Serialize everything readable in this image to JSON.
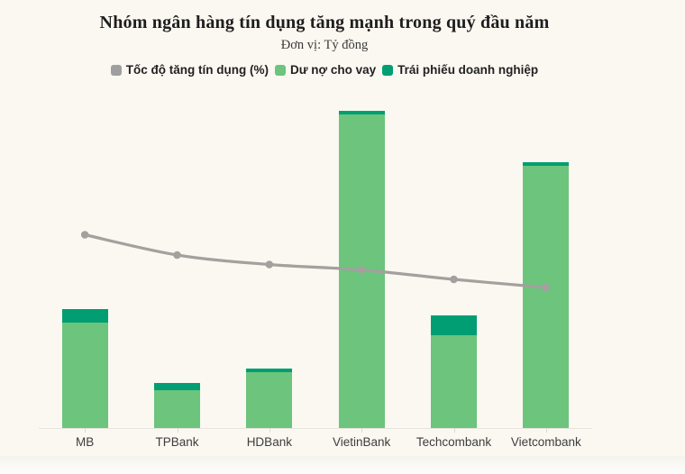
{
  "header": {
    "title": "Nhóm ngân hàng tín dụng tăng mạnh trong quý đầu năm",
    "subtitle": "Đơn vị: Tỷ đồng"
  },
  "colors": {
    "background": "#faf8f1",
    "loans_green": "#6cc47d",
    "bonds_green": "#009e72",
    "line_gray": "#a3a09e",
    "swatch_gray": "#9f9f9f",
    "axis": "#e7e5de",
    "title_text": "#1e1e1e",
    "label_text": "#3d3d3d"
  },
  "legend": {
    "items": [
      {
        "name": "growth-rate",
        "label": "Tốc độ tăng tín dụng (%)",
        "color": "#9f9f9f"
      },
      {
        "name": "loans",
        "label": "Dư nợ cho vay",
        "color": "#6cc47d"
      },
      {
        "name": "corporate-bonds",
        "label": "Trái phiếu doanh nghiệp",
        "color": "#009e72"
      }
    ]
  },
  "chart_data": {
    "type": "bar",
    "subtype": "stacked-bars-with-line-overlay",
    "title": "Nhóm ngân hàng tín dụng tăng mạnh trong quý đầu năm",
    "subtitle": "Đơn vị: Tỷ đồng",
    "categories": [
      "MB",
      "TPBank",
      "HDBank",
      "VietinBank",
      "Techcombank",
      "Vietcombank"
    ],
    "series": [
      {
        "name": "Dư nợ cho vay",
        "type": "bar-stack-bottom",
        "color": "#6cc47d",
        "values": [
          413000,
          148000,
          219000,
          1229000,
          364000,
          1028000
        ]
      },
      {
        "name": "Trái phiếu doanh nghiệp",
        "type": "bar-stack-top",
        "color": "#009e72",
        "values": [
          53000,
          28000,
          14000,
          16000,
          78000,
          14000
        ]
      },
      {
        "name": "Tốc độ tăng tín dụng (%)",
        "type": "line",
        "color": "#a3a09e",
        "values": [
          14.3,
          12.8,
          12.1,
          11.7,
          11.0,
          10.4
        ]
      }
    ],
    "xlabel": "",
    "ylabel": "Tỷ đồng",
    "ylim": [
      0,
      1325000
    ],
    "y2lim": [
      0,
      25
    ],
    "grid": false,
    "value_axes_hidden": true,
    "values_estimated_from_pixels": true,
    "legend_position": "top"
  }
}
